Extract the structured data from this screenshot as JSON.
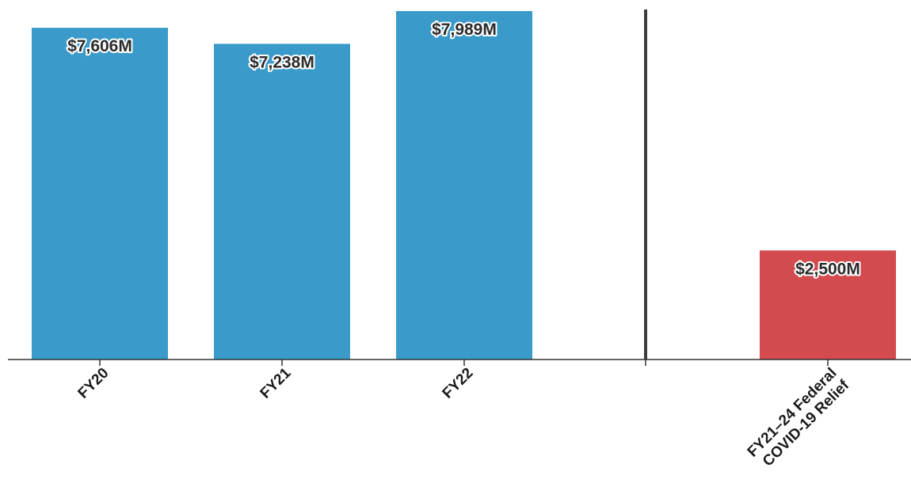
{
  "chart_data": {
    "type": "bar",
    "unit": "$M",
    "bars": [
      {
        "category": "FY20",
        "value": 7606,
        "label": "$7,606M",
        "color": "#3a9ac9"
      },
      {
        "category": "FY21",
        "value": 7238,
        "label": "$7,238M",
        "color": "#3a9ac9"
      },
      {
        "category": "FY22",
        "value": 7989,
        "label": "$7,989M",
        "color": "#3a9ac9"
      },
      {
        "category": "FY21–24 Federal COVID-19 Relief",
        "category_lines": [
          "FY21–24 Federal",
          "COVID-19 Relief"
        ],
        "value": 2500,
        "label": "$2,500M",
        "color": "#d34a4f"
      }
    ],
    "separator_after_category": "FY22",
    "ylim": [
      0,
      8000
    ],
    "grid": false,
    "legend": "none",
    "title": "",
    "xlabel": "",
    "ylabel": ""
  }
}
